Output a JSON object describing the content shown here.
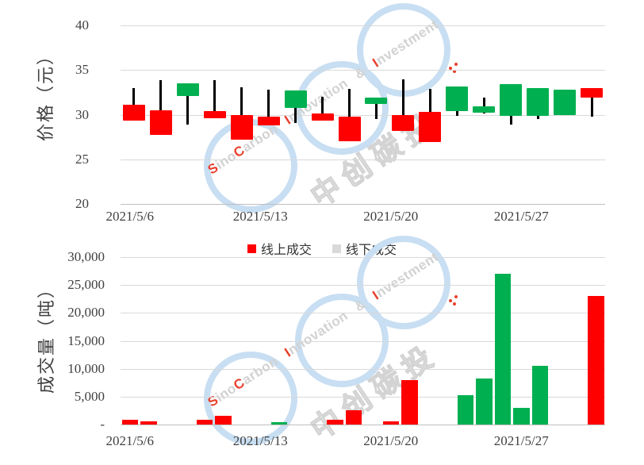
{
  "watermark": {
    "latin_segments": [
      {
        "text": "S",
        "color": "#e8402d"
      },
      {
        "text": "ino",
        "color": "#d2d2d2"
      },
      {
        "text": "C",
        "color": "#e8402d"
      },
      {
        "text": "arbon ",
        "color": "#d2d2d2"
      },
      {
        "text": "I",
        "color": "#e8402d"
      },
      {
        "text": "nnovation ",
        "color": "#d2d2d2"
      },
      {
        "text": "& ",
        "color": "#d2d2d2"
      },
      {
        "text": "I",
        "color": "#e8402d"
      },
      {
        "text": "nvestment",
        "color": "#d2d2d2"
      }
    ],
    "cjk_text": "中创碳投",
    "ring_color": "#c8def2",
    "accent_dot_color": "#e8402d"
  },
  "chart_data": [
    {
      "type": "candlestick",
      "title": "",
      "ylabel": "价格（元）",
      "ylim": [
        20,
        40
      ],
      "grid": true,
      "yticks": [
        {
          "label": "40",
          "value": 40
        },
        {
          "label": "35",
          "value": 35
        },
        {
          "label": "30",
          "value": 30
        },
        {
          "label": "25",
          "value": 25
        },
        {
          "label": "20",
          "value": 20
        }
      ],
      "xticks": [
        {
          "label": "2021/5/6",
          "day_index": 0
        },
        {
          "label": "2021/5/13",
          "day_index": 7
        },
        {
          "label": "2021/5/20",
          "day_index": 14
        },
        {
          "label": "2021/5/27",
          "day_index": 21
        }
      ],
      "colors": {
        "red": "#ff0000",
        "green": "#00b050",
        "wick": "#000000"
      },
      "candles": [
        {
          "date": "2021/5/6",
          "color": "red",
          "high": 33.0,
          "low": 29.3,
          "body_top": 31.1,
          "body_bottom": 29.3
        },
        {
          "date": "2021/5/7",
          "color": "red",
          "high": 33.9,
          "low": 27.7,
          "body_top": 30.5,
          "body_bottom": 27.7
        },
        {
          "date": "2021/5/10",
          "color": "green",
          "high": 33.5,
          "low": 28.9,
          "body_top": 33.5,
          "body_bottom": 32.1
        },
        {
          "date": "2021/5/11",
          "color": "red",
          "high": 33.9,
          "low": 29.6,
          "body_top": 30.4,
          "body_bottom": 29.6
        },
        {
          "date": "2021/5/12",
          "color": "red",
          "high": 33.1,
          "low": 27.2,
          "body_top": 30.0,
          "body_bottom": 27.2
        },
        {
          "date": "2021/5/13",
          "color": "red",
          "high": 32.8,
          "low": 28.8,
          "body_top": 29.8,
          "body_bottom": 28.8
        },
        {
          "date": "2021/5/14",
          "color": "green",
          "high": 32.7,
          "low": 29.1,
          "body_top": 32.7,
          "body_bottom": 30.8
        },
        {
          "date": "2021/5/17",
          "color": "red",
          "high": 32.0,
          "low": 29.3,
          "body_top": 30.1,
          "body_bottom": 29.3
        },
        {
          "date": "2021/5/18",
          "color": "red",
          "high": 32.9,
          "low": 27.0,
          "body_top": 29.8,
          "body_bottom": 27.0
        },
        {
          "date": "2021/5/19",
          "color": "green",
          "high": 31.9,
          "low": 29.5,
          "body_top": 31.9,
          "body_bottom": 31.2
        },
        {
          "date": "2021/5/20",
          "color": "red",
          "high": 34.0,
          "low": 28.2,
          "body_top": 30.0,
          "body_bottom": 28.2
        },
        {
          "date": "2021/5/21",
          "color": "red",
          "high": 32.9,
          "low": 26.9,
          "body_top": 30.3,
          "body_bottom": 26.9
        },
        {
          "date": "2021/5/24",
          "color": "green",
          "high": 33.2,
          "low": 29.9,
          "body_top": 33.2,
          "body_bottom": 30.4
        },
        {
          "date": "2021/5/25",
          "color": "green",
          "high": 31.9,
          "low": 30.1,
          "body_top": 30.9,
          "body_bottom": 30.2
        },
        {
          "date": "2021/5/26",
          "color": "green",
          "high": 33.4,
          "low": 28.9,
          "body_top": 33.4,
          "body_bottom": 29.9
        },
        {
          "date": "2021/5/27",
          "color": "green",
          "high": 33.0,
          "low": 29.5,
          "body_top": 33.0,
          "body_bottom": 29.9
        },
        {
          "date": "2021/5/28",
          "color": "green",
          "high": 32.8,
          "low": 30.0,
          "body_top": 32.8,
          "body_bottom": 30.0
        },
        {
          "date": "2021/5/31",
          "color": "red",
          "high": 33.0,
          "low": 29.8,
          "body_top": 33.0,
          "body_bottom": 31.9
        }
      ]
    },
    {
      "type": "bar",
      "title": "",
      "ylabel": "成交量（吨）",
      "ylim": [
        0,
        30000
      ],
      "grid": true,
      "calendar_days": 26,
      "yticks": [
        {
          "label": "30,000",
          "value": 30000
        },
        {
          "label": "25,000",
          "value": 25000
        },
        {
          "label": "20,000",
          "value": 20000
        },
        {
          "label": "15,000",
          "value": 15000
        },
        {
          "label": "10,000",
          "value": 10000
        },
        {
          "label": "5,000",
          "value": 5000
        },
        {
          "label": "-",
          "value": 0
        }
      ],
      "xticks": [
        {
          "label": "2021/5/6",
          "day_index": 0
        },
        {
          "label": "2021/5/13",
          "day_index": 7
        },
        {
          "label": "2021/5/20",
          "day_index": 14
        },
        {
          "label": "2021/5/27",
          "day_index": 21
        }
      ],
      "legend": [
        {
          "label": "线上成交",
          "color": "#ff0000"
        },
        {
          "label": "线下成交",
          "color": "#d9d9d9"
        }
      ],
      "colors": {
        "red": "#ff0000",
        "green": "#00b050"
      },
      "bars": [
        {
          "date": "2021/5/6",
          "value": 800,
          "color": "red"
        },
        {
          "date": "2021/5/7",
          "value": 550,
          "color": "red"
        },
        {
          "date": "2021/5/10",
          "value": 850,
          "color": "red"
        },
        {
          "date": "2021/5/11",
          "value": 1500,
          "color": "red"
        },
        {
          "date": "2021/5/14",
          "value": 400,
          "color": "green"
        },
        {
          "date": "2021/5/17",
          "value": 800,
          "color": "red"
        },
        {
          "date": "2021/5/18",
          "value": 2600,
          "color": "red"
        },
        {
          "date": "2021/5/20",
          "value": 550,
          "color": "red"
        },
        {
          "date": "2021/5/21",
          "value": 8000,
          "color": "red"
        },
        {
          "date": "2021/5/24",
          "value": 5200,
          "color": "green"
        },
        {
          "date": "2021/5/25",
          "value": 8300,
          "color": "green"
        },
        {
          "date": "2021/5/26",
          "value": 27000,
          "color": "green"
        },
        {
          "date": "2021/5/27",
          "value": 3000,
          "color": "green"
        },
        {
          "date": "2021/5/28",
          "value": 10500,
          "color": "green"
        },
        {
          "date": "2021/5/31",
          "value": 23000,
          "color": "red"
        }
      ]
    }
  ]
}
